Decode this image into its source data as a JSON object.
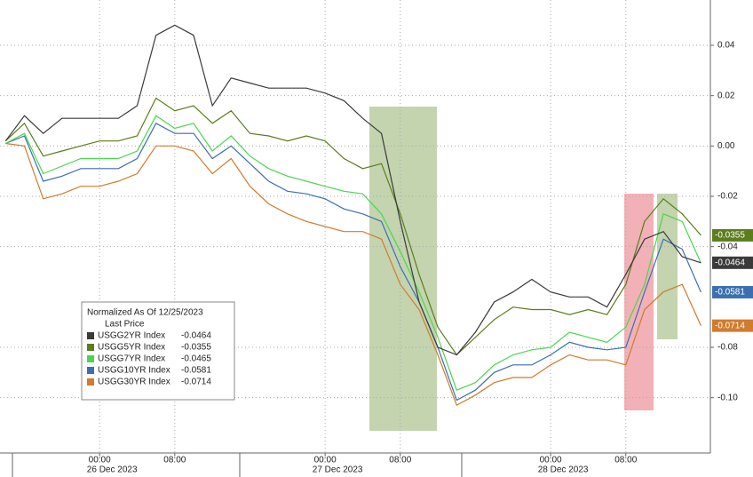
{
  "chart_data": {
    "type": "line",
    "legend_title": "Normalized As Of 12/25/2023",
    "legend_subtitle": "Last Price",
    "x": [
      -10,
      -8,
      -6,
      -4,
      -2,
      0,
      2,
      4,
      6,
      8,
      10,
      12,
      14,
      16,
      18,
      20,
      22,
      24,
      26,
      28,
      30,
      32,
      34,
      36,
      38,
      40,
      42,
      44,
      46,
      48,
      50,
      52,
      54,
      56,
      58,
      60,
      62,
      64
    ],
    "xlim": [
      -10.6,
      65
    ],
    "xticks": [
      {
        "value": 0,
        "label": "00:00"
      },
      {
        "value": 8,
        "label": "08:00"
      },
      {
        "value": 24,
        "label": "00:00"
      },
      {
        "value": 32,
        "label": "08:00"
      },
      {
        "value": 48,
        "label": "00:00"
      },
      {
        "value": 56,
        "label": "08:00"
      }
    ],
    "xdates": [
      {
        "value": 0,
        "label": "26 Dec 2023"
      },
      {
        "value": 24,
        "label": "27 Dec 2023"
      },
      {
        "value": 48,
        "label": "28 Dec 2023"
      }
    ],
    "ylim": [
      -0.122,
      0.058
    ],
    "yticks": [
      0.04,
      0.02,
      {
        "value": 0,
        "label": "0.00"
      },
      -0.02,
      -0.04,
      -0.08,
      {
        "value": -0.1,
        "label": "-0.10"
      }
    ],
    "grid": true,
    "series": [
      {
        "name": "USGG2YR Index",
        "color": "#3a3a3a",
        "values": [
          0.002,
          0.012,
          0.005,
          0.011,
          0.011,
          0.011,
          0.011,
          0.016,
          0.044,
          0.048,
          0.044,
          0.016,
          0.027,
          0.025,
          0.023,
          0.023,
          0.023,
          0.021,
          0.018,
          0.011,
          0.005,
          -0.03,
          -0.062,
          -0.08,
          -0.083,
          -0.074,
          -0.062,
          -0.058,
          -0.053,
          -0.058,
          -0.06,
          -0.06,
          -0.064,
          -0.051,
          -0.037,
          -0.034,
          -0.044,
          -0.0464
        ]
      },
      {
        "name": "USGG5YR Index",
        "color": "#5b7d1c",
        "values": [
          0.002,
          0.009,
          -0.004,
          -0.002,
          0,
          0.002,
          0.002,
          0.004,
          0.019,
          0.014,
          0.016,
          0.009,
          0.014,
          0.005,
          0.004,
          0.002,
          0.004,
          0.002,
          -0.005,
          -0.009,
          -0.007,
          -0.027,
          -0.051,
          -0.072,
          -0.083,
          -0.076,
          -0.069,
          -0.064,
          -0.065,
          -0.065,
          -0.067,
          -0.065,
          -0.067,
          -0.055,
          -0.03,
          -0.021,
          -0.027,
          -0.0355
        ]
      },
      {
        "name": "USGG7YR Index",
        "color": "#4cd64c",
        "values": [
          0.001,
          0.005,
          -0.011,
          -0.008,
          -0.005,
          -0.005,
          -0.005,
          -0.002,
          0.012,
          0.007,
          0.009,
          -0.002,
          0.004,
          -0.004,
          -0.009,
          -0.012,
          -0.014,
          -0.016,
          -0.018,
          -0.019,
          -0.027,
          -0.042,
          -0.058,
          -0.076,
          -0.097,
          -0.094,
          -0.087,
          -0.083,
          -0.081,
          -0.08,
          -0.074,
          -0.076,
          -0.078,
          -0.072,
          -0.055,
          -0.027,
          -0.03,
          -0.0465
        ]
      },
      {
        "name": "USGG10YR Index",
        "color": "#3b6fb0",
        "values": [
          0.001,
          0.004,
          -0.014,
          -0.012,
          -0.009,
          -0.009,
          -0.009,
          -0.005,
          0.009,
          0.005,
          0.005,
          -0.005,
          0,
          -0.007,
          -0.014,
          -0.018,
          -0.019,
          -0.021,
          -0.025,
          -0.027,
          -0.03,
          -0.048,
          -0.062,
          -0.08,
          -0.101,
          -0.097,
          -0.09,
          -0.087,
          -0.087,
          -0.083,
          -0.078,
          -0.08,
          -0.081,
          -0.08,
          -0.058,
          -0.037,
          -0.041,
          -0.0581
        ]
      },
      {
        "name": "USGG30YR Index",
        "color": "#d27b2c",
        "values": [
          0.001,
          0,
          -0.021,
          -0.019,
          -0.016,
          -0.016,
          -0.014,
          -0.011,
          0,
          0,
          -0.002,
          -0.011,
          -0.005,
          -0.016,
          -0.023,
          -0.027,
          -0.03,
          -0.032,
          -0.034,
          -0.034,
          -0.037,
          -0.055,
          -0.065,
          -0.083,
          -0.103,
          -0.099,
          -0.094,
          -0.092,
          -0.092,
          -0.087,
          -0.083,
          -0.085,
          -0.085,
          -0.087,
          -0.065,
          -0.058,
          -0.055,
          -0.0714
        ]
      }
    ]
  }
}
